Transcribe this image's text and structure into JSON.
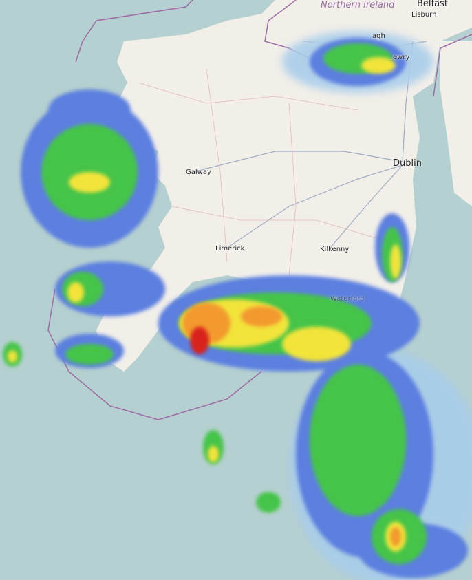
{
  "map": {
    "region_label": "Northern Ireland",
    "places": {
      "belfast": "Belfast",
      "lisburn": "Lisburn",
      "armagh": "agh",
      "newry": "ewry",
      "dublin": "Dublin",
      "galway": "Galway",
      "limerick": "Limerick",
      "kilkenny": "Kilkenny",
      "waterford": "Waterford"
    },
    "colors": {
      "sea": "#b5d0d0",
      "land": "#f2efe9",
      "border": "#9e6aa3",
      "radar_light": "#a9cdea",
      "radar_blue": "#5b7fe0",
      "radar_green": "#44c44a",
      "radar_yellow": "#f2e43a",
      "radar_orange": "#f29a2e",
      "radar_red": "#d8231c"
    }
  }
}
